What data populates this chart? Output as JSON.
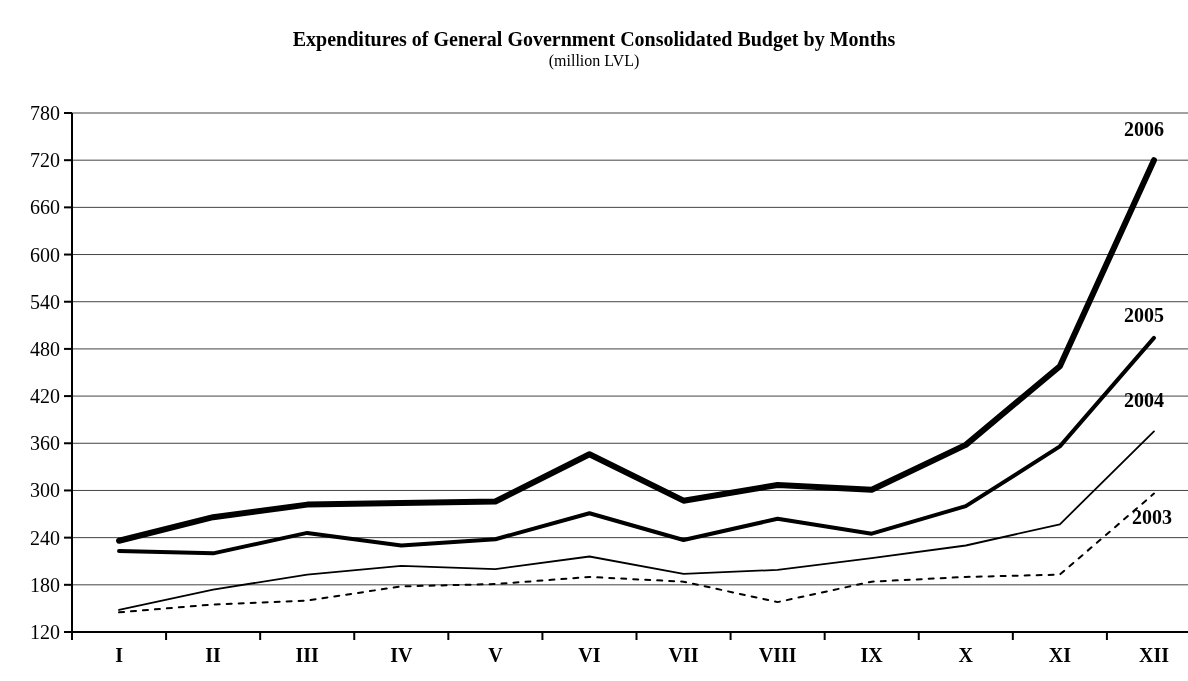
{
  "chart_data": {
    "type": "line",
    "title": "Expenditures of General Government Consolidated Budget by Months",
    "subtitle": "(million LVL)",
    "categories": [
      "I",
      "II",
      "III",
      "IV",
      "V",
      "VI",
      "VII",
      "VIII",
      "IX",
      "X",
      "XI",
      "XII"
    ],
    "series": [
      {
        "name": "2006",
        "color": "#000000",
        "line_style": "solid",
        "values": [
          236,
          266,
          282,
          284,
          286,
          346,
          287,
          307,
          301,
          358,
          458,
          720
        ]
      },
      {
        "name": "2005",
        "color": "#000000",
        "line_style": "solid",
        "values": [
          223,
          220,
          246,
          230,
          238,
          271,
          237,
          264,
          245,
          280,
          356,
          494
        ]
      },
      {
        "name": "2004",
        "color": "#000000",
        "line_style": "solid",
        "values": [
          148,
          174,
          193,
          204,
          200,
          216,
          194,
          199,
          214,
          230,
          257,
          375
        ]
      },
      {
        "name": "2003",
        "color": "#000000",
        "line_style": "dashed",
        "values": [
          145,
          155,
          160,
          178,
          181,
          190,
          184,
          158,
          184,
          190,
          193,
          296
        ]
      }
    ],
    "ylim": [
      120,
      780
    ],
    "yticks": [
      120,
      180,
      240,
      300,
      360,
      420,
      480,
      540,
      600,
      660,
      720,
      780
    ],
    "grid": "y",
    "marker": "none"
  }
}
